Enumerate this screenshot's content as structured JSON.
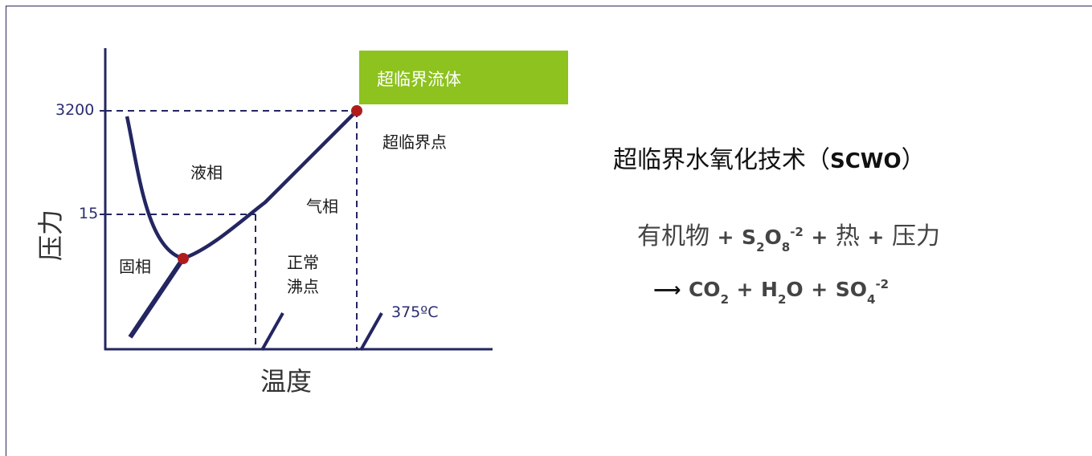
{
  "diagram": {
    "y_axis_label": "压力",
    "x_axis_label": "温度",
    "pressure_ticks": [
      "3200",
      "15"
    ],
    "temperature_label": "375ºC",
    "regions": {
      "liquid": "液相",
      "gas": "气相",
      "solid": "固相",
      "normal_boiling_point_line1": "正常",
      "normal_boiling_point_line2": "沸点"
    },
    "critical_point_label": "超临界点",
    "supercritical_fluid_label": "超临界流体",
    "colors": {
      "line": "#232661",
      "point": "#b01c1c",
      "supercritical_box": "#8dc21f"
    }
  },
  "scwo": {
    "title_cn": "超临界水氧化技术（",
    "title_abbr": "SCWO",
    "title_close": "）",
    "eq1": {
      "organics": "有机物",
      "plus1": "+",
      "s": "S",
      "s_sub": "2",
      "o": "O",
      "o_sub": "8",
      "o_sup": "-2",
      "plus2": "+",
      "heat": "热",
      "plus3": "+",
      "pressure": "压力"
    },
    "eq2": {
      "arrow": "⟶",
      "co": "CO",
      "co_sub": "2",
      "plus1": "+",
      "h": "H",
      "h_sub": "2",
      "h_o": "O",
      "plus2": "+",
      "so": "SO",
      "so_sub": "4",
      "so_sup": "-2"
    }
  }
}
